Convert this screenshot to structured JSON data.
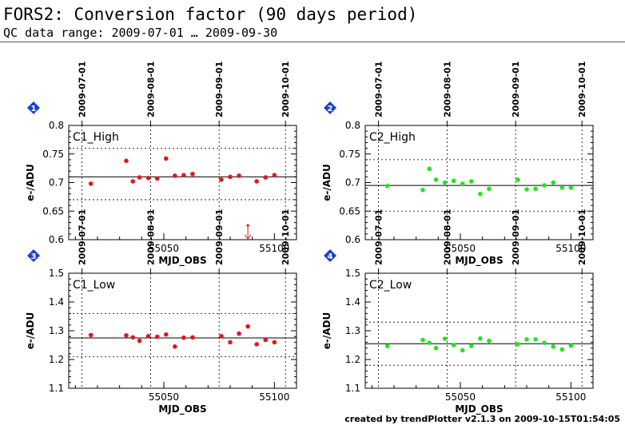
{
  "header": {
    "title": "FORS2: Conversion factor (90 days period)",
    "subtitle": "QC data range: 2009-07-01 … 2009-09-30"
  },
  "footer": "created by trendPlotter v2.1.3 on 2009-10-15T01:54:05",
  "colors": {
    "c1": "#e8141c",
    "c2": "#1ee61e",
    "badge": "#1a3fd6",
    "grid": "#000000",
    "ref": "#000000"
  },
  "chart_data": [
    {
      "type": "scatter",
      "badge": "1",
      "label": "C1_High",
      "color": "#e8141c",
      "xlabel": "MJD_OBS",
      "ylabel": "e-/ADU",
      "xlim": [
        55007,
        55110
      ],
      "ylim": [
        0.6,
        0.8
      ],
      "yticks": [
        "0.6",
        "0.65",
        "0.7",
        "0.75",
        "0.8"
      ],
      "ytick_values": [
        0.6,
        0.65,
        0.7,
        0.75,
        0.8
      ],
      "xticks": [
        "55050",
        "55100"
      ],
      "xtick_values": [
        55050,
        55100
      ],
      "date_ticks": [
        "2009-07-01",
        "2009-08-01",
        "2009-09-01",
        "2009-10-01"
      ],
      "date_tick_mjd": [
        55013,
        55044,
        55075,
        55105
      ],
      "ref_line": 0.71,
      "band_lines": [
        0.76,
        0.67
      ],
      "x": [
        55017,
        55033,
        55036,
        55039,
        55043,
        55047,
        55051,
        55055,
        55059,
        55063,
        55076,
        55080,
        55084,
        55092,
        55096,
        55100
      ],
      "y": [
        0.698,
        0.738,
        0.702,
        0.709,
        0.708,
        0.707,
        0.742,
        0.712,
        0.713,
        0.715,
        0.705,
        0.71,
        0.712,
        0.702,
        0.709,
        0.713
      ],
      "outliers": [
        {
          "x": 55088,
          "y": 0.625,
          "direction": "down"
        }
      ]
    },
    {
      "type": "scatter",
      "badge": "2",
      "label": "C2_High",
      "color": "#1ee61e",
      "xlabel": "MJD_OBS",
      "ylabel": "e-/ADU",
      "xlim": [
        55007,
        55110
      ],
      "ylim": [
        0.6,
        0.8
      ],
      "yticks": [
        "0.6",
        "0.65",
        "0.7",
        "0.75",
        "0.8"
      ],
      "ytick_values": [
        0.6,
        0.65,
        0.7,
        0.75,
        0.8
      ],
      "xticks": [
        "55050",
        "55100"
      ],
      "xtick_values": [
        55050,
        55100
      ],
      "date_ticks": [
        "2009-07-01",
        "2009-08-01",
        "2009-09-01",
        "2009-10-01"
      ],
      "date_tick_mjd": [
        55013,
        55044,
        55075,
        55105
      ],
      "ref_line": 0.695,
      "band_lines": [
        0.74,
        0.65
      ],
      "x": [
        55017,
        55033,
        55036,
        55039,
        55043,
        55047,
        55051,
        55055,
        55059,
        55063,
        55076,
        55080,
        55084,
        55088,
        55092,
        55096,
        55100
      ],
      "y": [
        0.694,
        0.687,
        0.724,
        0.705,
        0.7,
        0.703,
        0.698,
        0.702,
        0.68,
        0.689,
        0.705,
        0.688,
        0.689,
        0.695,
        0.7,
        0.691,
        0.691
      ]
    },
    {
      "type": "scatter",
      "badge": "3",
      "label": "C1_Low",
      "color": "#e8141c",
      "xlabel": "MJD_OBS",
      "ylabel": "e-/ADU",
      "xlim": [
        55007,
        55110
      ],
      "ylim": [
        1.1,
        1.5
      ],
      "yticks": [
        "1.1",
        "1.2",
        "1.3",
        "1.4",
        "1.5"
      ],
      "ytick_values": [
        1.1,
        1.2,
        1.3,
        1.4,
        1.5
      ],
      "xticks": [
        "55050",
        "55100"
      ],
      "xtick_values": [
        55050,
        55100
      ],
      "date_ticks": [
        "2009-07-01",
        "2009-08-01",
        "2009-09-01",
        "2009-10-01"
      ],
      "date_tick_mjd": [
        55013,
        55044,
        55075,
        55105
      ],
      "ref_line": 1.275,
      "band_lines": [
        1.36,
        1.21
      ],
      "x": [
        55017,
        55033,
        55036,
        55039,
        55043,
        55047,
        55051,
        55055,
        55059,
        55063,
        55076,
        55080,
        55084,
        55088,
        55092,
        55096,
        55100
      ],
      "y": [
        1.285,
        1.284,
        1.277,
        1.265,
        1.281,
        1.279,
        1.287,
        1.245,
        1.276,
        1.277,
        1.281,
        1.26,
        1.29,
        1.315,
        1.253,
        1.268,
        1.26
      ]
    },
    {
      "type": "scatter",
      "badge": "4",
      "label": "C2_Low",
      "color": "#1ee61e",
      "xlabel": "MJD_OBS",
      "ylabel": "e-/ADU",
      "xlim": [
        55007,
        55110
      ],
      "ylim": [
        1.1,
        1.5
      ],
      "yticks": [
        "1.1",
        "1.2",
        "1.3",
        "1.4",
        "1.5"
      ],
      "ytick_values": [
        1.1,
        1.2,
        1.3,
        1.4,
        1.5
      ],
      "xticks": [
        "55050",
        "55100"
      ],
      "xtick_values": [
        55050,
        55100
      ],
      "date_ticks": [
        "2009-07-01",
        "2009-08-01",
        "2009-09-01",
        "2009-10-01"
      ],
      "date_tick_mjd": [
        55013,
        55044,
        55075,
        55105
      ],
      "ref_line": 1.255,
      "band_lines": [
        1.33,
        1.18
      ],
      "x": [
        55017,
        55033,
        55036,
        55039,
        55043,
        55047,
        55051,
        55055,
        55059,
        55063,
        55076,
        55080,
        55084,
        55088,
        55092,
        55096,
        55100
      ],
      "y": [
        1.247,
        1.268,
        1.258,
        1.24,
        1.272,
        1.25,
        1.232,
        1.247,
        1.273,
        1.265,
        1.253,
        1.27,
        1.27,
        1.258,
        1.245,
        1.235,
        1.248
      ]
    }
  ]
}
